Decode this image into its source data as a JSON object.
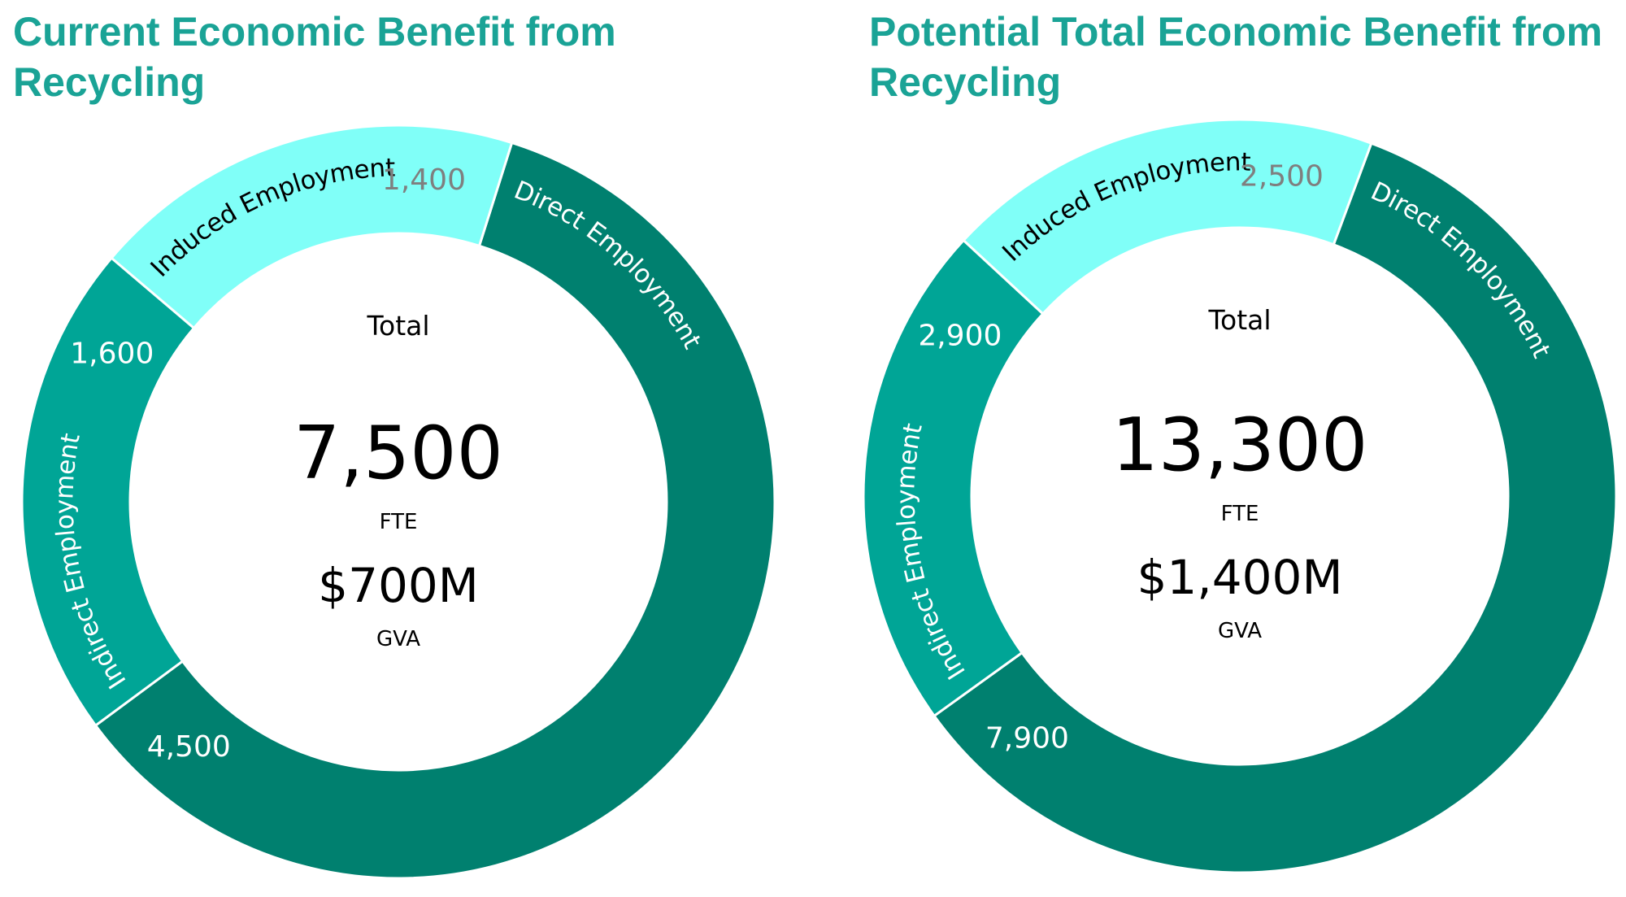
{
  "colors": {
    "title": "#1aa396",
    "direct": "#00806f",
    "indirect": "#00a596",
    "induced": "#80fff8",
    "label_light": "#ffffff",
    "label_dark": "#000000",
    "value_on_light": "#7f7f7f"
  },
  "chart_data": [
    {
      "type": "pie",
      "title": "Current Economic Benefit from Recycling",
      "categories": [
        "Direct Employment",
        "Indirect Employment",
        "Induced Employment"
      ],
      "values": [
        4500,
        1600,
        1400
      ],
      "value_labels": [
        "4,500",
        "1,600",
        "1,400"
      ],
      "center": {
        "label": "Total",
        "total": "7,500",
        "total_unit": "FTE",
        "gva": "$700M",
        "gva_unit": "GVA"
      }
    },
    {
      "type": "pie",
      "title": "Potential Total Economic Benefit from Recycling",
      "categories": [
        "Direct Employment",
        "Indirect Employment",
        "Induced Employment"
      ],
      "values": [
        7900,
        2900,
        2500
      ],
      "value_labels": [
        "7,900",
        "2,900",
        "2,500"
      ],
      "center": {
        "label": "Total",
        "total": "13,300",
        "total_unit": "FTE",
        "gva": "$1,400M",
        "gva_unit": "GVA"
      }
    }
  ]
}
